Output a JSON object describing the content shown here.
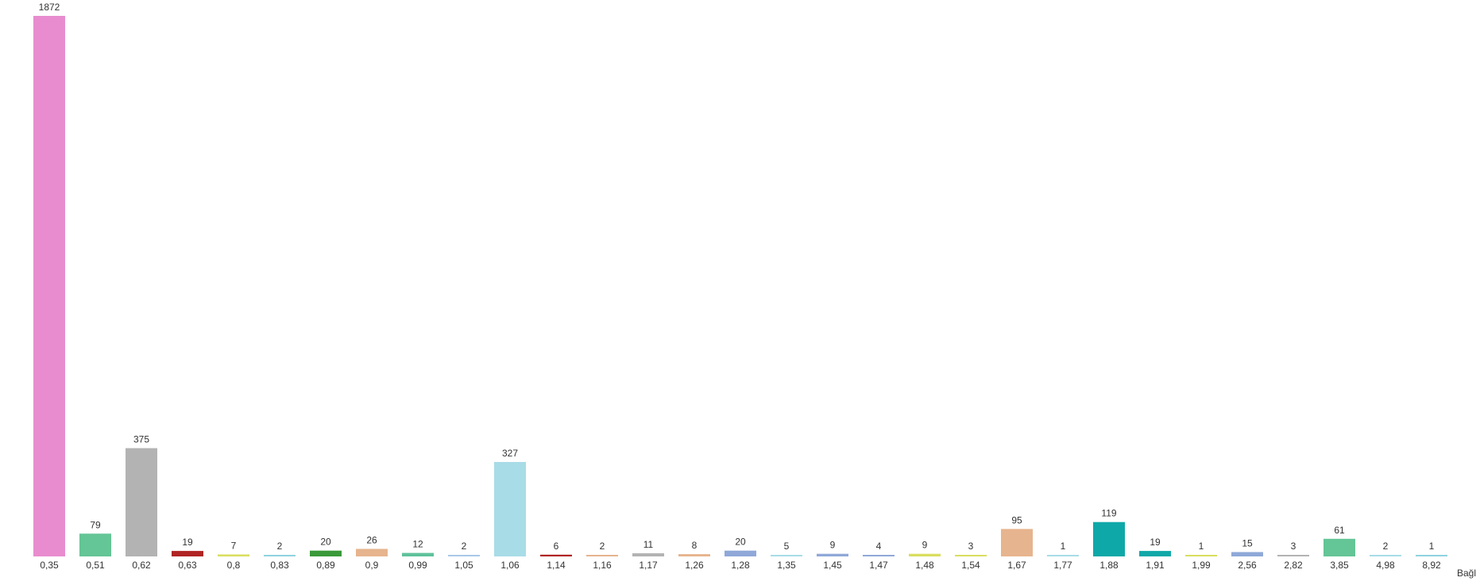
{
  "chart_data": {
    "type": "bar",
    "xlabel": "Bağl",
    "ylabel": "",
    "ylim": [
      0,
      1872
    ],
    "grid": false,
    "legend": "none",
    "categories": [
      "0,35",
      "0,51",
      "0,62",
      "0,63",
      "0,8",
      "0,83",
      "0,89",
      "0,9",
      "0,99",
      "1,05",
      "1,06",
      "1,14",
      "1,16",
      "1,17",
      "1,26",
      "1,28",
      "1,35",
      "1,45",
      "1,47",
      "1,48",
      "1,54",
      "1,67",
      "1,77",
      "1,88",
      "1,91",
      "1,99",
      "2,56",
      "2,82",
      "3,85",
      "4,98",
      "8,92"
    ],
    "values": [
      1872,
      79,
      375,
      19,
      7,
      2,
      20,
      26,
      12,
      2,
      327,
      6,
      2,
      11,
      8,
      20,
      5,
      9,
      4,
      9,
      3,
      95,
      1,
      119,
      19,
      1,
      15,
      3,
      61,
      2,
      1
    ],
    "colors": [
      "#e88ccf",
      "#64c596",
      "#b3b3b3",
      "#b02424",
      "#d9de5e",
      "#8fd3de",
      "#3a9a3a",
      "#e6b48e",
      "#5fc29b",
      "#a8c8e8",
      "#a8dce6",
      "#b02424",
      "#e6b48e",
      "#b3b3b3",
      "#e6b48e",
      "#8fa8d8",
      "#a8dce6",
      "#8fa8d8",
      "#8fa8d8",
      "#d9de5e",
      "#d9de5e",
      "#e6b48e",
      "#a8dce6",
      "#0fa8a8",
      "#0fa8a8",
      "#d9de5e",
      "#8fa8d8",
      "#b3b3b3",
      "#64c596",
      "#a8dce6",
      "#8fd3de"
    ]
  }
}
